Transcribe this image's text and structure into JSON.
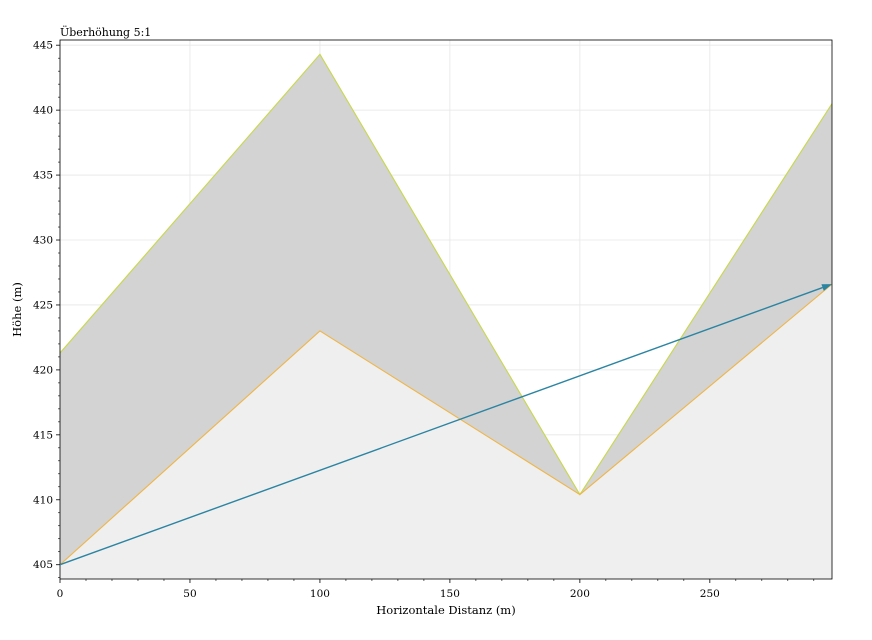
{
  "chart_data": {
    "type": "area",
    "annotation": "Überhöhung 5:1",
    "xlabel": "Horizontale Distanz (m)",
    "ylabel": "Höhe (m)",
    "xlim": [
      0,
      297
    ],
    "ylim": [
      403.9,
      445.4
    ],
    "x_ticks": [
      0,
      50,
      100,
      150,
      200,
      250
    ],
    "y_ticks": [
      405,
      410,
      415,
      420,
      425,
      430,
      435,
      440,
      445
    ],
    "grid": true,
    "series": [
      {
        "x": [
          0,
          100,
          200,
          297
        ],
        "y": [
          421.3,
          444.3,
          410.4,
          440.5
        ],
        "line_color": "#c8d84a",
        "fill_color": "#d3d3d3"
      },
      {
        "x": [
          0,
          100,
          200,
          297
        ],
        "y": [
          405.0,
          423.0,
          410.4,
          426.6
        ],
        "line_color": "#f0b545",
        "fill_color": "#efefef"
      },
      {
        "x": [
          0,
          297
        ],
        "y": [
          405.0,
          426.6
        ],
        "line_color": "#2b84a2",
        "arrow": true
      }
    ],
    "colors": {
      "grid": "#e6e6e6",
      "frame": "#000000"
    }
  }
}
